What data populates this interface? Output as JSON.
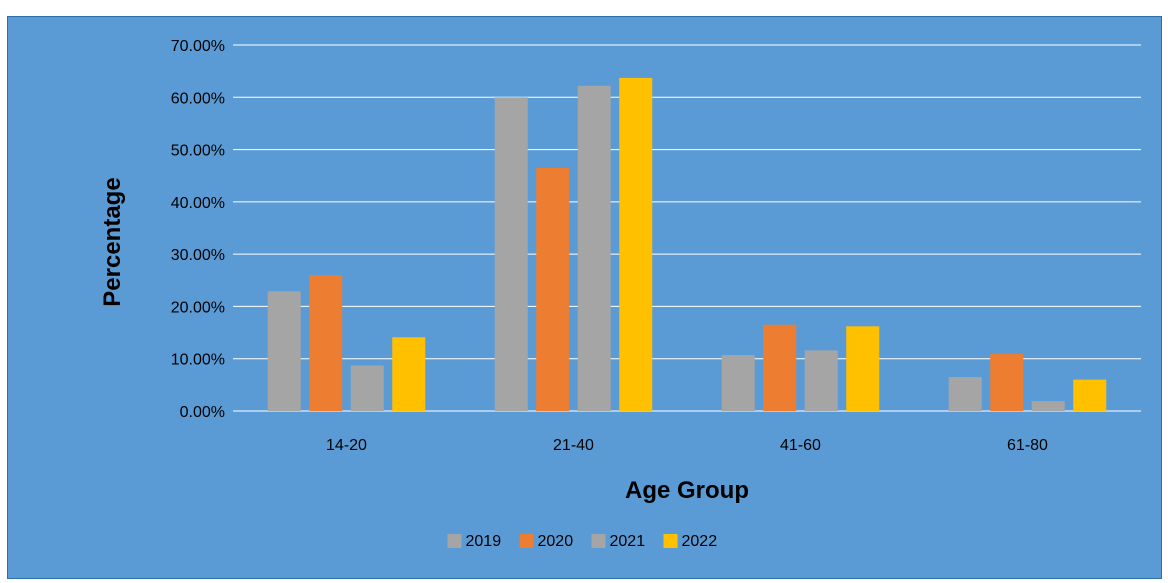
{
  "chart_data": {
    "type": "bar",
    "categories": [
      "14-20",
      "21-40",
      "41-60",
      "61-80"
    ],
    "series": [
      {
        "name": "2019",
        "values": [
          22.9,
          60.0,
          10.7,
          6.5
        ],
        "color": "#a5a5a5"
      },
      {
        "name": "2020",
        "values": [
          26.0,
          46.5,
          16.5,
          10.9
        ],
        "color": "#ed7d31"
      },
      {
        "name": "2021",
        "values": [
          8.7,
          62.2,
          11.6,
          1.9
        ],
        "color": "#a5a5a5"
      },
      {
        "name": "2022",
        "values": [
          14.1,
          63.7,
          16.2,
          6.0
        ],
        "color": "#ffc000"
      }
    ],
    "yticks": [
      "0.00%",
      "10.00%",
      "20.00%",
      "30.00%",
      "40.00%",
      "50.00%",
      "60.00%",
      "70.00%"
    ],
    "ylim": [
      0,
      70
    ],
    "ylabel": "Percentage",
    "xlabel": "Age Group",
    "grid": true,
    "legend_position": "bottom",
    "background_color": "#5b9bd5",
    "gridline_color": "#ffffff"
  }
}
